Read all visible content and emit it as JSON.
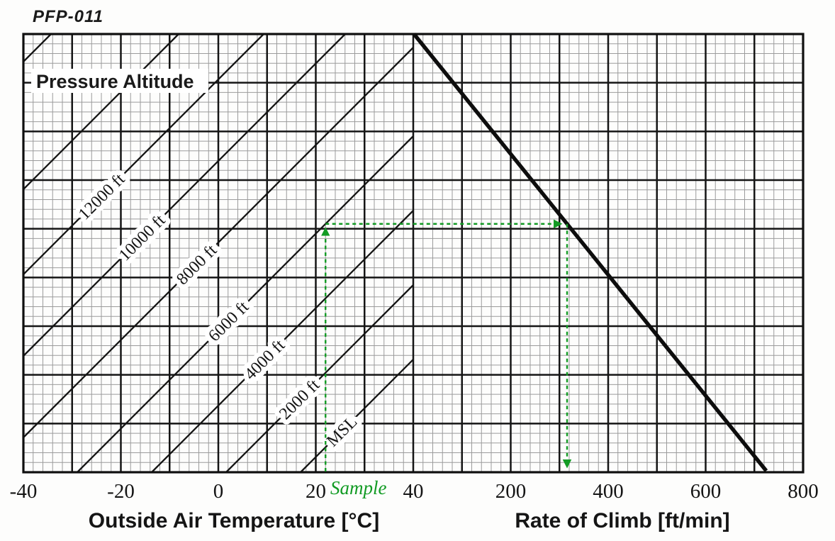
{
  "page_title": "PFP-011",
  "fan_title": "Pressure Altitude",
  "sample_label": "Sample",
  "colors": {
    "sample_green": "#129b24",
    "ink_black": "#151515",
    "minor_grid": "#9b9b9b"
  },
  "chart_data": {
    "type": "line",
    "title": "PFP-011",
    "x_axis_left": {
      "label": "Outside Air Temperature [°C]",
      "range": [
        -40,
        40
      ],
      "ticks": [
        -40,
        -20,
        0,
        20,
        40
      ],
      "unit": "°C"
    },
    "x_axis_right": {
      "label": "Rate of Climb [ft/min]",
      "range": [
        0,
        800
      ],
      "ticks": [
        200,
        400,
        600,
        800
      ],
      "unit": "ft/min"
    },
    "grid": {
      "major_columns": 16,
      "major_rows": 9,
      "minor_per_major": 5,
      "gridlines": "on"
    },
    "pressure_altitude_lines": [
      {
        "label": "12000 ft",
        "alt_ft": 12000
      },
      {
        "label": "10000 ft",
        "alt_ft": 10000
      },
      {
        "label": "8000 ft",
        "alt_ft": 8000
      },
      {
        "label": "6000 ft",
        "alt_ft": 6000
      },
      {
        "label": "4000 ft",
        "alt_ft": 4000
      },
      {
        "label": "2000 ft",
        "alt_ft": 2000
      },
      {
        "label": "MSL",
        "alt_ft": 0
      }
    ],
    "unlabeled_fan_lines_above_12000": 2,
    "climb_performance_line": {
      "rate_of_climb_at_top_edge_ftmin": 0,
      "rate_of_climb_at_bottom_edge_ftmin": 715
    },
    "sample": {
      "oat_c": 22,
      "pressure_altitude_ft": 6000,
      "rate_of_climb_ftmin": 310
    },
    "legend_position": "upper-left",
    "annotations": [
      "Pressure Altitude",
      "Sample"
    ]
  }
}
